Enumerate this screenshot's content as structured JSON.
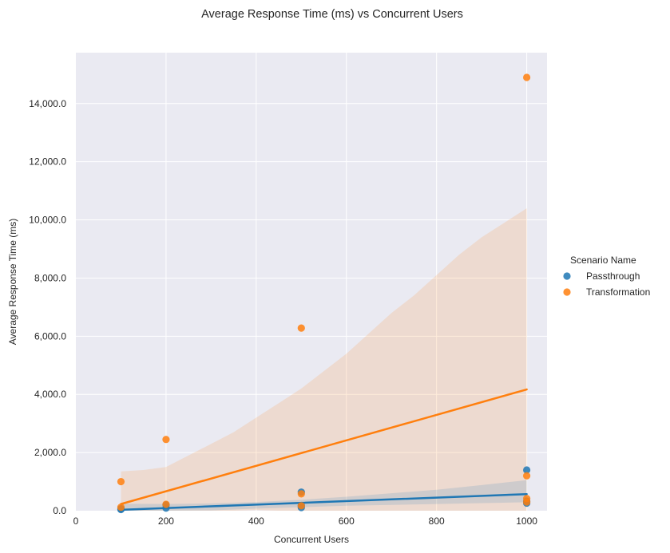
{
  "chart_data": {
    "type": "scatter",
    "title": "Average Response Time (ms) vs Concurrent Users",
    "xlabel": "Concurrent Users",
    "ylabel": "Average Response Time (ms)",
    "xlim": [
      0,
      1045
    ],
    "ylim": [
      0,
      15750
    ],
    "xticks": [
      0,
      200,
      400,
      600,
      800,
      1000
    ],
    "yticks": [
      0,
      2000,
      4000,
      6000,
      8000,
      10000,
      12000,
      14000
    ],
    "ytick_labels": [
      "0.0",
      "2,000.0",
      "4,000.0",
      "6,000.0",
      "8,000.0",
      "10,000.0",
      "12,000.0",
      "14,000.0"
    ],
    "grid": true,
    "legend": {
      "title": "Scenario Name",
      "position": "right"
    },
    "series": [
      {
        "name": "Passthrough",
        "color": "#1f77b4",
        "points": [
          {
            "x": 100,
            "y": 40
          },
          {
            "x": 100,
            "y": 70
          },
          {
            "x": 200,
            "y": 90
          },
          {
            "x": 200,
            "y": 200
          },
          {
            "x": 500,
            "y": 110
          },
          {
            "x": 500,
            "y": 180
          },
          {
            "x": 500,
            "y": 640
          },
          {
            "x": 1000,
            "y": 260
          },
          {
            "x": 1000,
            "y": 330
          },
          {
            "x": 1000,
            "y": 1400
          }
        ],
        "trend_line": {
          "x": [
            100,
            1000
          ],
          "y": [
            30,
            570
          ]
        },
        "confidence_band": {
          "x": [
            100,
            200,
            300,
            400,
            500,
            600,
            700,
            800,
            900,
            1000
          ],
          "lower": [
            -180,
            -80,
            10,
            70,
            120,
            170,
            200,
            230,
            260,
            290
          ],
          "upper": [
            240,
            230,
            250,
            300,
            380,
            480,
            600,
            720,
            880,
            1050
          ]
        }
      },
      {
        "name": "Transformation",
        "color": "#ff7f0e",
        "points": [
          {
            "x": 100,
            "y": 120
          },
          {
            "x": 100,
            "y": 1000
          },
          {
            "x": 200,
            "y": 2450
          },
          {
            "x": 200,
            "y": 220
          },
          {
            "x": 500,
            "y": 6280
          },
          {
            "x": 500,
            "y": 580
          },
          {
            "x": 500,
            "y": 170
          },
          {
            "x": 1000,
            "y": 14900
          },
          {
            "x": 1000,
            "y": 1200
          },
          {
            "x": 1000,
            "y": 420
          },
          {
            "x": 1000,
            "y": 300
          }
        ],
        "trend_line": {
          "x": [
            100,
            1000
          ],
          "y": [
            230,
            4170
          ]
        },
        "confidence_band": {
          "x": [
            100,
            150,
            200,
            250,
            300,
            350,
            400,
            450,
            500,
            550,
            600,
            650,
            700,
            750,
            800,
            850,
            900,
            950,
            1000
          ],
          "lower": [
            -900,
            -650,
            -400,
            -250,
            -120,
            -20,
            20,
            0,
            -40,
            -200,
            -430,
            -650,
            -900,
            -1150,
            -1420,
            -1700,
            -1970,
            -2250,
            -2530
          ],
          "upper": [
            1350,
            1400,
            1500,
            1900,
            2300,
            2700,
            3200,
            3700,
            4200,
            4800,
            5400,
            6100,
            6800,
            7400,
            8100,
            8800,
            9400,
            9900,
            10400
          ]
        }
      }
    ]
  }
}
